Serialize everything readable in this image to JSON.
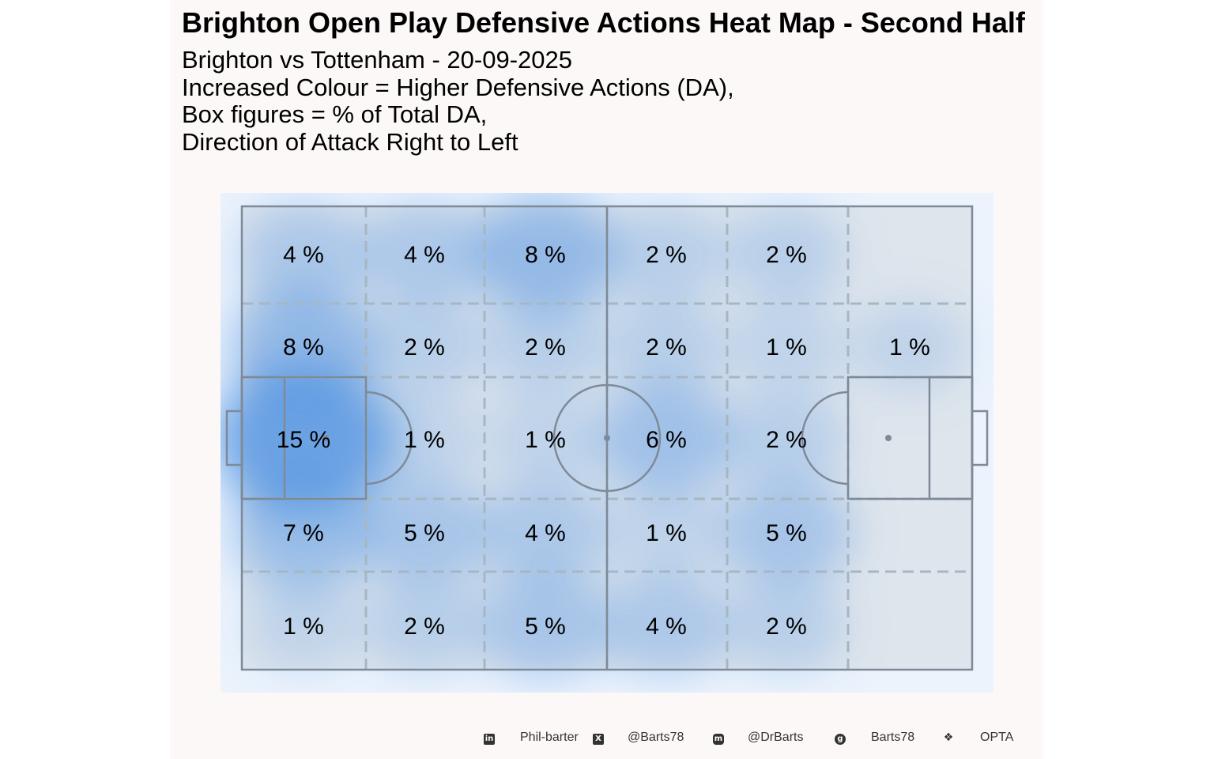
{
  "title": "Brighton Open Play Defensive Actions Heat Map - Second Half",
  "subtitle_lines": [
    "Brighton vs Tottenham - 20-09-2025",
    "Increased Colour = Higher Defensive Actions (DA),",
    "Box figures = % of Total DA,",
    "Direction of Attack Right to Left"
  ],
  "colors": {
    "panel_bg": "#fdf8f8",
    "plot_bg": "#ecf3fc",
    "pitch_fill": "#dfe5ec",
    "pitch_lines": "#7e8a98",
    "zone_lines": "#a7b7c1",
    "density": "#4a90e2"
  },
  "chart_data": {
    "type": "heatmap",
    "rows": [
      "top",
      "upper-mid",
      "centre",
      "lower-mid",
      "bottom"
    ],
    "cols": 6,
    "cells": [
      [
        "4 %",
        "4 %",
        "8 %",
        "2 %",
        "2 %",
        ""
      ],
      [
        "8 %",
        "2 %",
        "2 %",
        "2 %",
        "1 %",
        "1 %"
      ],
      [
        "15 %",
        "1 %",
        "1 %",
        "6 %",
        "2 %",
        ""
      ],
      [
        "7 %",
        "5 %",
        "4 %",
        "1 %",
        "5 %",
        ""
      ],
      [
        "1 %",
        "2 %",
        "5 %",
        "4 %",
        "2 %",
        ""
      ]
    ],
    "values": [
      [
        4,
        4,
        8,
        2,
        2,
        0
      ],
      [
        8,
        2,
        2,
        2,
        1,
        1
      ],
      [
        15,
        1,
        1,
        6,
        2,
        0
      ],
      [
        7,
        5,
        4,
        1,
        5,
        0
      ],
      [
        1,
        2,
        5,
        4,
        2,
        0
      ]
    ],
    "direction_of_attack": "right to left"
  },
  "caption": [
    {
      "icon": "linkedin-icon",
      "text": "Phil-barter"
    },
    {
      "icon": "x-icon",
      "text": "@Barts78"
    },
    {
      "icon": "mastodon-icon",
      "text": "@DrBarts"
    },
    {
      "icon": "github-icon",
      "text": "Barts78"
    },
    {
      "icon": "dropbox-icon",
      "text": "OPTA"
    }
  ]
}
